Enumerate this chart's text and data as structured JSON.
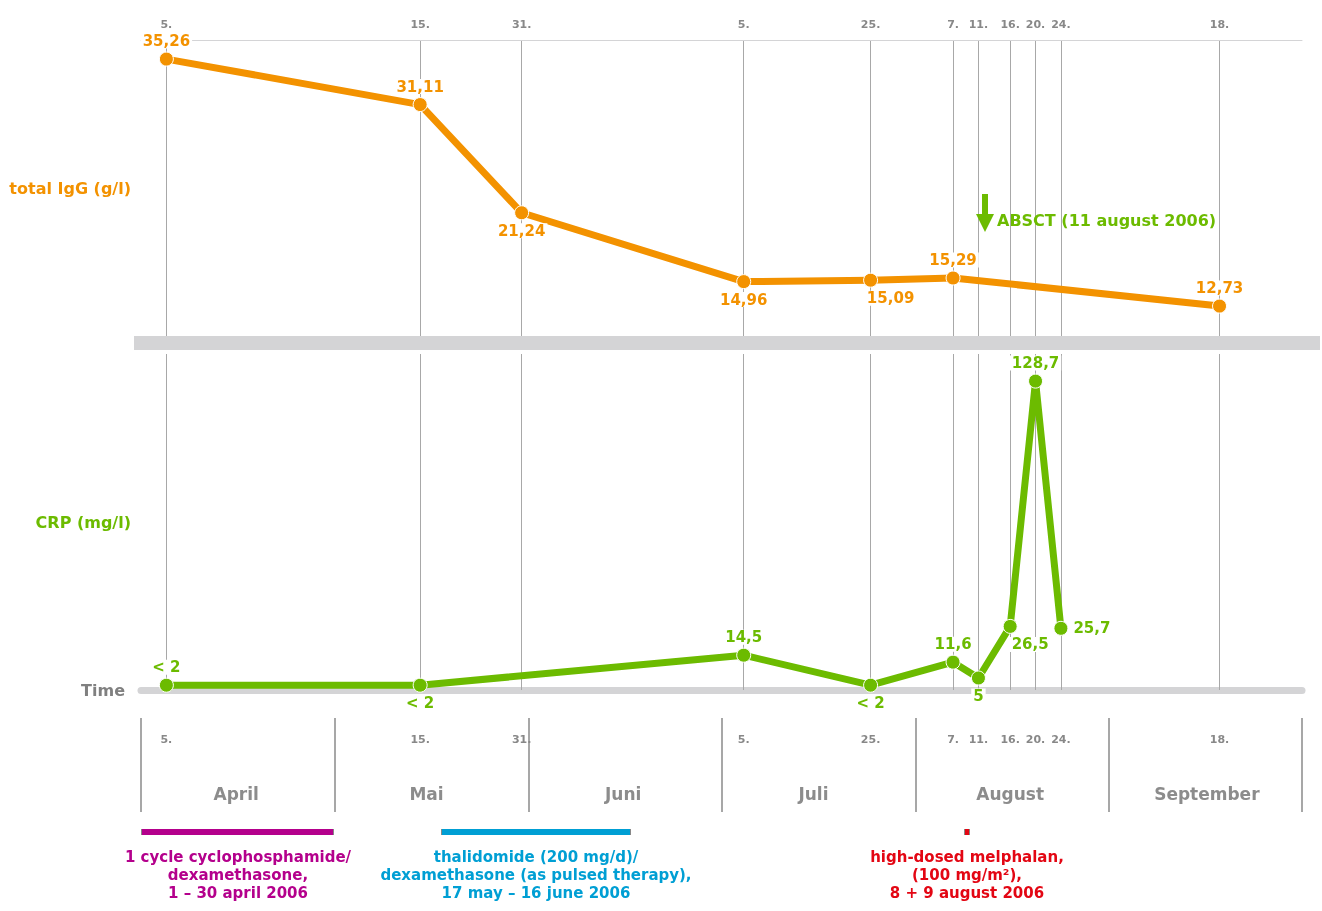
{
  "chart_data": [
    {
      "type": "line",
      "ylabel": "total IgG (g/l)",
      "x": [
        "2006-04-05",
        "2006-05-15",
        "2006-05-31",
        "2006-07-05",
        "2006-07-25",
        "2006-08-07",
        "2006-09-18"
      ],
      "xticks": [
        {
          "value": "2006-04-05",
          "label": "5."
        },
        {
          "value": "2006-05-15",
          "label": "15."
        },
        {
          "value": "2006-05-31",
          "label": "31."
        },
        {
          "value": "2006-07-05",
          "label": "5."
        },
        {
          "value": "2006-07-25",
          "label": "25."
        },
        {
          "value": "2006-08-07",
          "label": "7."
        },
        {
          "value": "2006-08-11",
          "label": "11."
        },
        {
          "value": "2006-08-16",
          "label": "16."
        },
        {
          "value": "2006-08-20",
          "label": "20."
        },
        {
          "value": "2006-08-24",
          "label": "24."
        },
        {
          "value": "2006-09-18",
          "label": "18."
        }
      ],
      "xlim": [
        "2006-04-01",
        "2006-10-01"
      ],
      "ylim": [
        10,
        37
      ],
      "tick_labels": "x",
      "grid": "x",
      "marker": "circle",
      "line_style": "solid",
      "series": [
        {
          "color": "#f39200",
          "values": [
            35.26,
            31.11,
            21.24,
            14.96,
            15.09,
            15.29,
            12.73
          ],
          "value_labels": [
            "35,26",
            "31,11",
            "21,24",
            "14,96",
            "15,09",
            "15,29",
            "12,73"
          ]
        }
      ],
      "annotations": [
        "ABSCT (11 august 2006)"
      ]
    },
    {
      "type": "line",
      "ylabel": "CRP (mg/l)",
      "xlabel": "Time",
      "x": [
        "2006-04-05",
        "2006-05-15",
        "2006-07-05",
        "2006-07-25",
        "2006-08-07",
        "2006-08-11",
        "2006-08-16",
        "2006-08-20",
        "2006-08-24"
      ],
      "xlim": [
        "2006-04-01",
        "2006-10-01"
      ],
      "xticks": [
        {
          "value": "2006-04-05",
          "label": "5."
        },
        {
          "value": "2006-05-15",
          "label": "15."
        },
        {
          "value": "2006-05-31",
          "label": "31."
        },
        {
          "value": "2006-07-05",
          "label": "5."
        },
        {
          "value": "2006-07-25",
          "label": "25."
        },
        {
          "value": "2006-08-07",
          "label": "7."
        },
        {
          "value": "2006-08-11",
          "label": "11."
        },
        {
          "value": "2006-08-16",
          "label": "16."
        },
        {
          "value": "2006-08-20",
          "label": "20."
        },
        {
          "value": "2006-08-24",
          "label": "24."
        },
        {
          "value": "2006-09-18",
          "label": "18."
        }
      ],
      "x2lim": [
        "2006-04-01",
        "2006-10-01"
      ],
      "x2ticks": [
        {
          "value": "2006-04-16",
          "label": "April"
        },
        {
          "value": "2006-05-16",
          "label": "Mai"
        },
        {
          "value": "2006-06-16",
          "label": "Juni"
        },
        {
          "value": "2006-07-16",
          "label": "Juli"
        },
        {
          "value": "2006-08-16",
          "label": "August"
        },
        {
          "value": "2006-09-16",
          "label": "September"
        }
      ],
      "ylim": [
        0,
        140
      ],
      "tick_labels": "x",
      "grid": "x",
      "marker": "circle",
      "line_style": "solid",
      "series": [
        {
          "color": "#6cbb00",
          "values": [
            2,
            2,
            14.5,
            2,
            11.6,
            5,
            26.5,
            128.7,
            25.7
          ],
          "value_labels": [
            "< 2",
            "< 2",
            "14,5",
            "< 2",
            "11,6",
            "5",
            "26,5",
            "128,7",
            "25,7"
          ]
        }
      ],
      "annotations": [
        "1 cycle cyclophosphamide/\ndexamethasone,\n1 – 30 april 2006",
        "thalidomide (200 mg/d)/\ndexamethasone (as pulsed therapy),\n17 may – 16 june 2006",
        "high-dosed melphalan,\n(100 mg/m²),\n8 + 9 august 2006"
      ]
    }
  ]
}
